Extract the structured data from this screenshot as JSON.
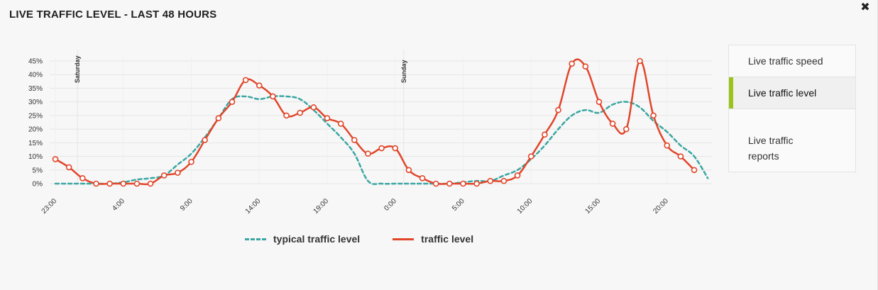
{
  "header": {
    "title": "LIVE TRAFFIC LEVEL - LAST 48 HOURS",
    "close_icon": "close-icon"
  },
  "menu": {
    "items": [
      {
        "label": "Live traffic speed",
        "active": false
      },
      {
        "label": "Live traffic level",
        "active": true
      },
      {
        "label": "Live traffic\nreports",
        "active": false
      }
    ],
    "accent_color": "#9bc31c"
  },
  "legend": {
    "typical_label": "typical traffic level",
    "traffic_label": "traffic level"
  },
  "chart_data": {
    "type": "line",
    "title": "LIVE TRAFFIC LEVEL - LAST 48 HOURS",
    "x_unit": "hour index (0 = 23:00)",
    "x_ticks": [
      {
        "x": 0,
        "label": "23:00"
      },
      {
        "x": 5,
        "label": "4:00"
      },
      {
        "x": 10,
        "label": "9:00"
      },
      {
        "x": 15,
        "label": "14:00"
      },
      {
        "x": 20,
        "label": "19:00"
      },
      {
        "x": 25,
        "label": "0:00"
      },
      {
        "x": 30,
        "label": "5:00"
      },
      {
        "x": 35,
        "label": "10:00"
      },
      {
        "x": 40,
        "label": "15:00"
      },
      {
        "x": 45,
        "label": "20:00"
      }
    ],
    "y_ticks": [
      "0%",
      "5%",
      "10%",
      "15%",
      "20%",
      "25%",
      "30%",
      "35%",
      "40%",
      "45%"
    ],
    "ylim": [
      0,
      45
    ],
    "xlim": [
      0,
      48
    ],
    "day_markers": [
      {
        "x": 1,
        "label": "Saturday"
      },
      {
        "x": 25,
        "label": "Sunday"
      }
    ],
    "grid": true,
    "legend_position": "bottom",
    "series": [
      {
        "name": "typical traffic level",
        "style": "dashed",
        "color": "#3aa6a2",
        "points": [
          [
            0,
            0
          ],
          [
            1,
            0
          ],
          [
            2,
            0
          ],
          [
            3,
            0
          ],
          [
            4,
            0
          ],
          [
            5,
            0.5
          ],
          [
            6,
            1.5
          ],
          [
            7,
            2
          ],
          [
            8,
            3
          ],
          [
            9,
            7
          ],
          [
            10,
            11
          ],
          [
            11,
            17
          ],
          [
            12,
            24
          ],
          [
            13,
            31
          ],
          [
            14,
            32
          ],
          [
            15,
            31
          ],
          [
            16,
            32
          ],
          [
            17,
            32
          ],
          [
            18,
            31
          ],
          [
            19,
            27
          ],
          [
            20,
            22
          ],
          [
            21,
            17
          ],
          [
            22,
            11
          ],
          [
            23,
            1
          ],
          [
            24,
            0
          ],
          [
            25,
            0
          ],
          [
            26,
            0
          ],
          [
            27,
            0
          ],
          [
            28,
            0
          ],
          [
            29,
            0
          ],
          [
            30,
            0.5
          ],
          [
            31,
            1
          ],
          [
            32,
            1
          ],
          [
            33,
            3
          ],
          [
            34,
            5
          ],
          [
            35,
            9
          ],
          [
            36,
            14
          ],
          [
            37,
            20
          ],
          [
            38,
            25
          ],
          [
            39,
            27
          ],
          [
            40,
            26
          ],
          [
            41,
            29
          ],
          [
            42,
            30
          ],
          [
            43,
            28
          ],
          [
            44,
            23
          ],
          [
            45,
            19
          ],
          [
            46,
            14
          ],
          [
            47,
            10
          ],
          [
            48,
            2
          ]
        ]
      },
      {
        "name": "traffic level",
        "style": "solid",
        "color": "#e1462a",
        "points": [
          [
            0,
            9
          ],
          [
            1,
            6
          ],
          [
            2,
            2
          ],
          [
            3,
            0
          ],
          [
            4,
            0
          ],
          [
            5,
            0
          ],
          [
            6,
            0
          ],
          [
            7,
            0
          ],
          [
            8,
            3
          ],
          [
            9,
            4
          ],
          [
            10,
            8
          ],
          [
            11,
            16
          ],
          [
            12,
            24
          ],
          [
            13,
            30
          ],
          [
            14,
            38
          ],
          [
            15,
            36
          ],
          [
            16,
            32
          ],
          [
            17,
            25
          ],
          [
            18,
            26
          ],
          [
            19,
            28
          ],
          [
            20,
            24
          ],
          [
            21,
            22
          ],
          [
            22,
            16
          ],
          [
            23,
            11
          ],
          [
            24,
            13
          ],
          [
            25,
            13
          ],
          [
            26,
            5
          ],
          [
            27,
            2
          ],
          [
            28,
            0
          ],
          [
            29,
            0
          ],
          [
            30,
            0
          ],
          [
            31,
            0
          ],
          [
            32,
            1
          ],
          [
            33,
            1
          ],
          [
            34,
            3
          ],
          [
            35,
            10
          ],
          [
            36,
            18
          ],
          [
            37,
            27
          ],
          [
            38,
            44
          ],
          [
            39,
            43
          ],
          [
            40,
            30
          ],
          [
            41,
            22
          ],
          [
            42,
            20
          ],
          [
            43,
            45
          ],
          [
            44,
            25
          ],
          [
            45,
            14
          ],
          [
            46,
            10
          ],
          [
            47,
            5
          ]
        ]
      }
    ]
  }
}
